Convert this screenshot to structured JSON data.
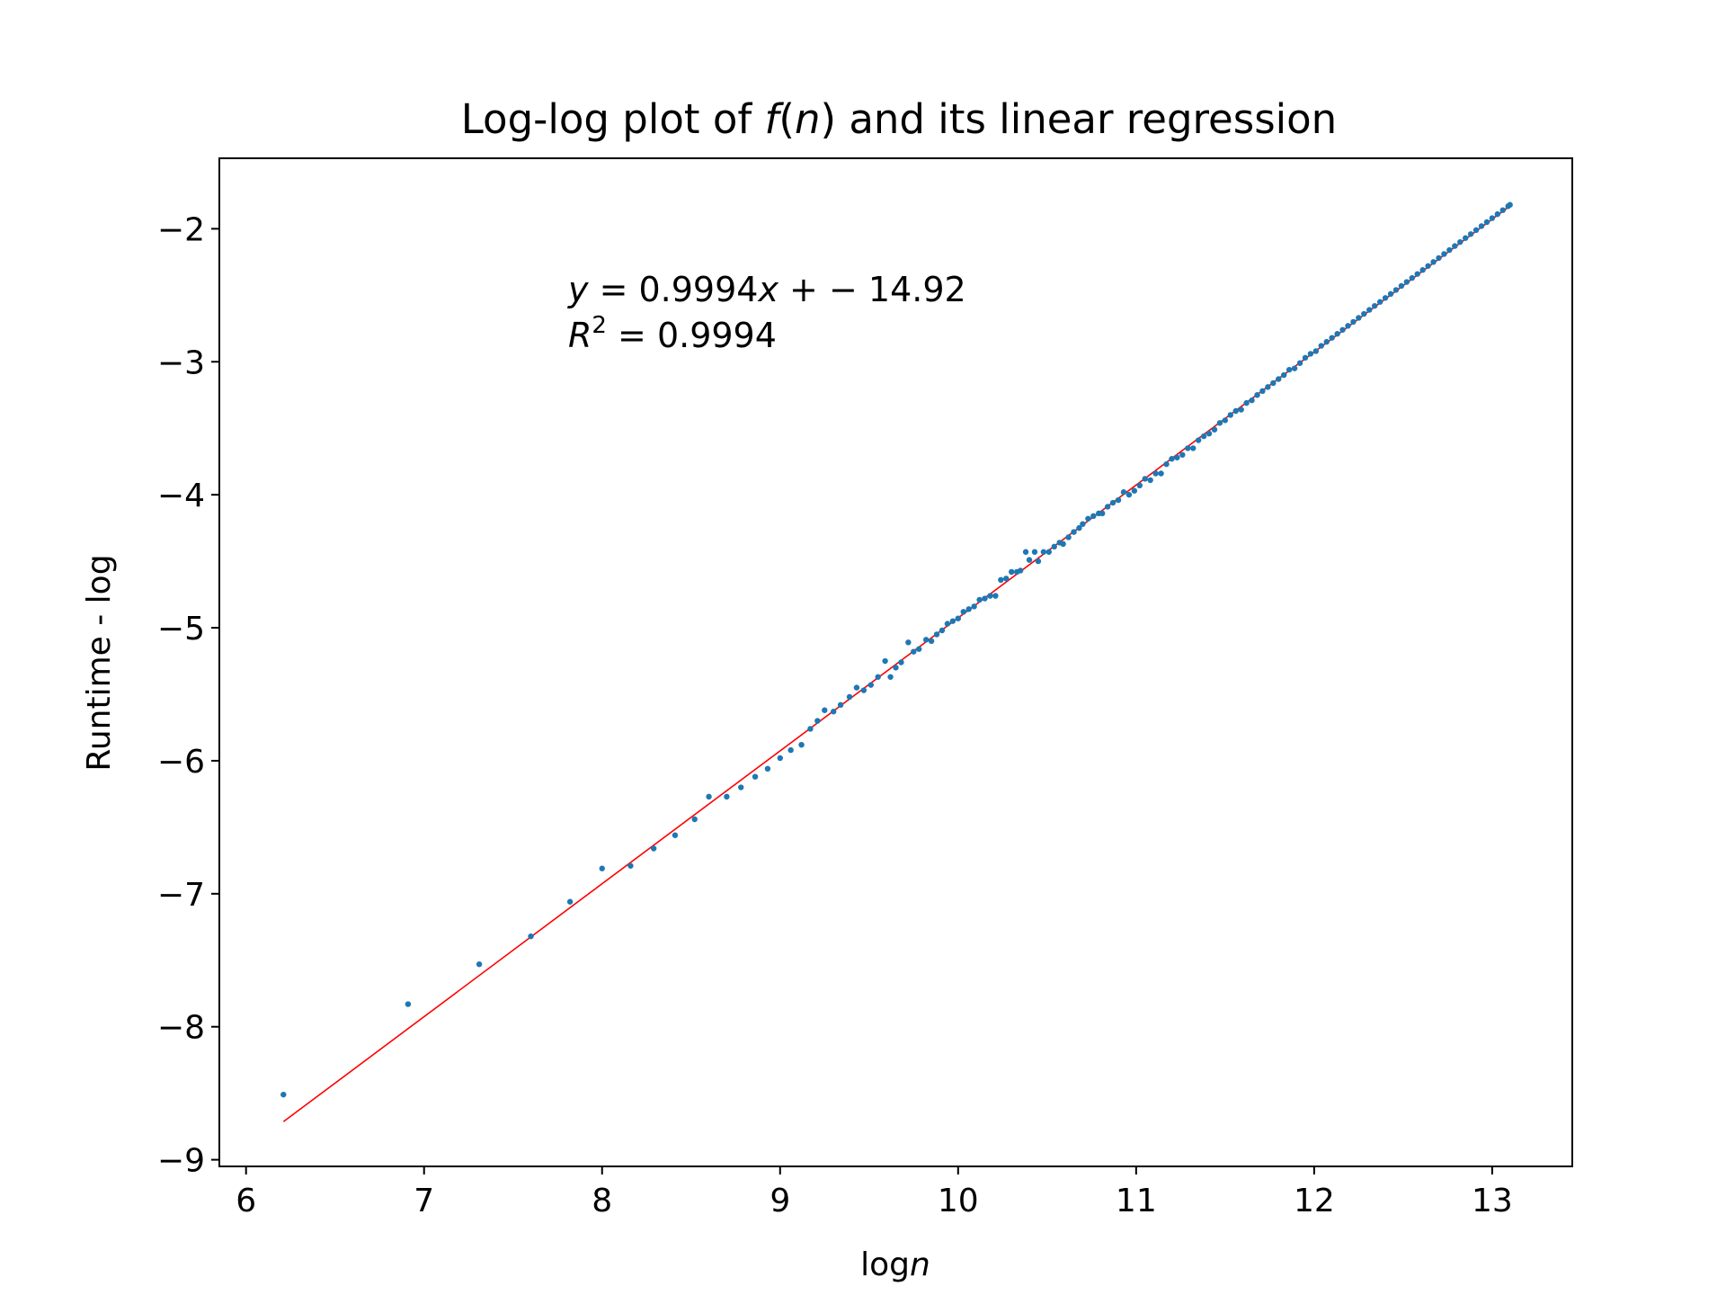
{
  "chart_data": {
    "type": "scatter",
    "title_main_before": "Log-log plot of ",
    "title_func": "f",
    "title_open": "(",
    "title_var": "n",
    "title_close": ")",
    "title_after": " and its linear regression",
    "xlabel_prefix": "log",
    "xlabel_var": "n",
    "ylabel": "Runtime - log",
    "xlim": [
      5.85,
      13.45
    ],
    "ylim": [
      -9.05,
      -1.47
    ],
    "xticks": [
      6,
      7,
      8,
      9,
      10,
      11,
      12,
      13
    ],
    "yticks": [
      -9,
      -8,
      -7,
      -6,
      -5,
      -4,
      -3,
      -2
    ],
    "xtick_labels": [
      "6",
      "7",
      "8",
      "9",
      "10",
      "11",
      "12",
      "13"
    ],
    "ytick_labels": [
      "−9",
      "−8",
      "−7",
      "−6",
      "−5",
      "−4",
      "−3",
      "−2"
    ],
    "annotation": {
      "line1_y": "y",
      "line1_rest": " = 0.9994",
      "line1_x": "x",
      "line1_end": " + − 14.92",
      "line2_R": "R",
      "line2_sup": "2",
      "line2_rest": " = 0.9994"
    },
    "regression": {
      "slope": 0.9994,
      "intercept": -14.92,
      "x_range": [
        6.21,
        13.1
      ],
      "color": "#ff0000"
    },
    "point_color": "#1f77b4",
    "points": [
      [
        6.21,
        -8.51
      ],
      [
        6.91,
        -7.83
      ],
      [
        7.31,
        -7.53
      ],
      [
        7.6,
        -7.32
      ],
      [
        7.82,
        -7.06
      ],
      [
        8.0,
        -6.81
      ],
      [
        8.16,
        -6.79
      ],
      [
        8.29,
        -6.66
      ],
      [
        8.41,
        -6.56
      ],
      [
        8.52,
        -6.44
      ],
      [
        8.6,
        -6.27
      ],
      [
        8.7,
        -6.27
      ],
      [
        8.78,
        -6.2
      ],
      [
        8.86,
        -6.12
      ],
      [
        8.93,
        -6.06
      ],
      [
        9.0,
        -5.98
      ],
      [
        9.06,
        -5.92
      ],
      [
        9.12,
        -5.88
      ],
      [
        9.17,
        -5.76
      ],
      [
        9.21,
        -5.7
      ],
      [
        9.25,
        -5.62
      ],
      [
        9.3,
        -5.63
      ],
      [
        9.34,
        -5.58
      ],
      [
        9.39,
        -5.52
      ],
      [
        9.43,
        -5.45
      ],
      [
        9.47,
        -5.47
      ],
      [
        9.51,
        -5.43
      ],
      [
        9.55,
        -5.37
      ],
      [
        9.59,
        -5.25
      ],
      [
        9.62,
        -5.37
      ],
      [
        9.65,
        -5.3
      ],
      [
        9.68,
        -5.26
      ],
      [
        9.72,
        -5.11
      ],
      [
        9.75,
        -5.18
      ],
      [
        9.78,
        -5.16
      ],
      [
        9.82,
        -5.09
      ],
      [
        9.85,
        -5.1
      ],
      [
        9.88,
        -5.05
      ],
      [
        9.91,
        -5.02
      ],
      [
        9.94,
        -4.97
      ],
      [
        9.97,
        -4.95
      ],
      [
        10.0,
        -4.93
      ],
      [
        10.03,
        -4.88
      ],
      [
        10.06,
        -4.86
      ],
      [
        10.09,
        -4.84
      ],
      [
        10.12,
        -4.79
      ],
      [
        10.15,
        -4.78
      ],
      [
        10.18,
        -4.76
      ],
      [
        10.21,
        -4.76
      ],
      [
        10.24,
        -4.64
      ],
      [
        10.27,
        -4.63
      ],
      [
        10.3,
        -4.58
      ],
      [
        10.33,
        -4.58
      ],
      [
        10.35,
        -4.57
      ],
      [
        10.38,
        -4.43
      ],
      [
        10.4,
        -4.49
      ],
      [
        10.43,
        -4.43
      ],
      [
        10.45,
        -4.5
      ],
      [
        10.48,
        -4.43
      ],
      [
        10.51,
        -4.43
      ],
      [
        10.54,
        -4.39
      ],
      [
        10.57,
        -4.36
      ],
      [
        10.59,
        -4.37
      ],
      [
        10.62,
        -4.32
      ],
      [
        10.65,
        -4.28
      ],
      [
        10.68,
        -4.25
      ],
      [
        10.7,
        -4.22
      ],
      [
        10.73,
        -4.18
      ],
      [
        10.76,
        -4.16
      ],
      [
        10.79,
        -4.14
      ],
      [
        10.81,
        -4.14
      ],
      [
        10.84,
        -4.09
      ],
      [
        10.87,
        -4.06
      ],
      [
        10.9,
        -4.04
      ],
      [
        10.93,
        -3.98
      ],
      [
        10.96,
        -4.0
      ],
      [
        10.99,
        -3.97
      ],
      [
        11.02,
        -3.93
      ],
      [
        11.05,
        -3.88
      ],
      [
        11.08,
        -3.89
      ],
      [
        11.11,
        -3.84
      ],
      [
        11.14,
        -3.84
      ],
      [
        11.17,
        -3.77
      ],
      [
        11.2,
        -3.73
      ],
      [
        11.23,
        -3.72
      ],
      [
        11.26,
        -3.7
      ],
      [
        11.29,
        -3.65
      ],
      [
        11.32,
        -3.65
      ],
      [
        11.35,
        -3.59
      ],
      [
        11.38,
        -3.56
      ],
      [
        11.41,
        -3.54
      ],
      [
        11.44,
        -3.51
      ],
      [
        11.47,
        -3.46
      ],
      [
        11.5,
        -3.44
      ],
      [
        11.53,
        -3.4
      ],
      [
        11.56,
        -3.37
      ],
      [
        11.59,
        -3.36
      ],
      [
        11.62,
        -3.31
      ],
      [
        11.65,
        -3.29
      ],
      [
        11.68,
        -3.25
      ],
      [
        11.71,
        -3.22
      ],
      [
        11.74,
        -3.19
      ],
      [
        11.77,
        -3.16
      ],
      [
        11.8,
        -3.13
      ],
      [
        11.83,
        -3.1
      ],
      [
        11.86,
        -3.06
      ],
      [
        11.89,
        -3.05
      ],
      [
        11.92,
        -3.01
      ],
      [
        11.95,
        -2.97
      ],
      [
        11.98,
        -2.94
      ],
      [
        12.01,
        -2.92
      ],
      [
        12.04,
        -2.88
      ],
      [
        12.07,
        -2.85
      ],
      [
        12.1,
        -2.82
      ],
      [
        12.13,
        -2.79
      ],
      [
        12.16,
        -2.76
      ],
      [
        12.19,
        -2.73
      ],
      [
        12.22,
        -2.7
      ],
      [
        12.25,
        -2.67
      ],
      [
        12.28,
        -2.64
      ],
      [
        12.31,
        -2.61
      ],
      [
        12.34,
        -2.58
      ],
      [
        12.37,
        -2.55
      ],
      [
        12.4,
        -2.52
      ],
      [
        12.43,
        -2.49
      ],
      [
        12.46,
        -2.46
      ],
      [
        12.49,
        -2.43
      ],
      [
        12.52,
        -2.4
      ],
      [
        12.55,
        -2.37
      ],
      [
        12.58,
        -2.34
      ],
      [
        12.61,
        -2.31
      ],
      [
        12.64,
        -2.28
      ],
      [
        12.67,
        -2.25
      ],
      [
        12.7,
        -2.22
      ],
      [
        12.73,
        -2.19
      ],
      [
        12.76,
        -2.16
      ],
      [
        12.79,
        -2.13
      ],
      [
        12.82,
        -2.1
      ],
      [
        12.85,
        -2.07
      ],
      [
        12.88,
        -2.04
      ],
      [
        12.91,
        -2.01
      ],
      [
        12.94,
        -1.98
      ],
      [
        12.97,
        -1.95
      ],
      [
        13.0,
        -1.92
      ],
      [
        13.03,
        -1.89
      ],
      [
        13.06,
        -1.86
      ],
      [
        13.09,
        -1.83
      ],
      [
        13.1,
        -1.82
      ]
    ]
  }
}
